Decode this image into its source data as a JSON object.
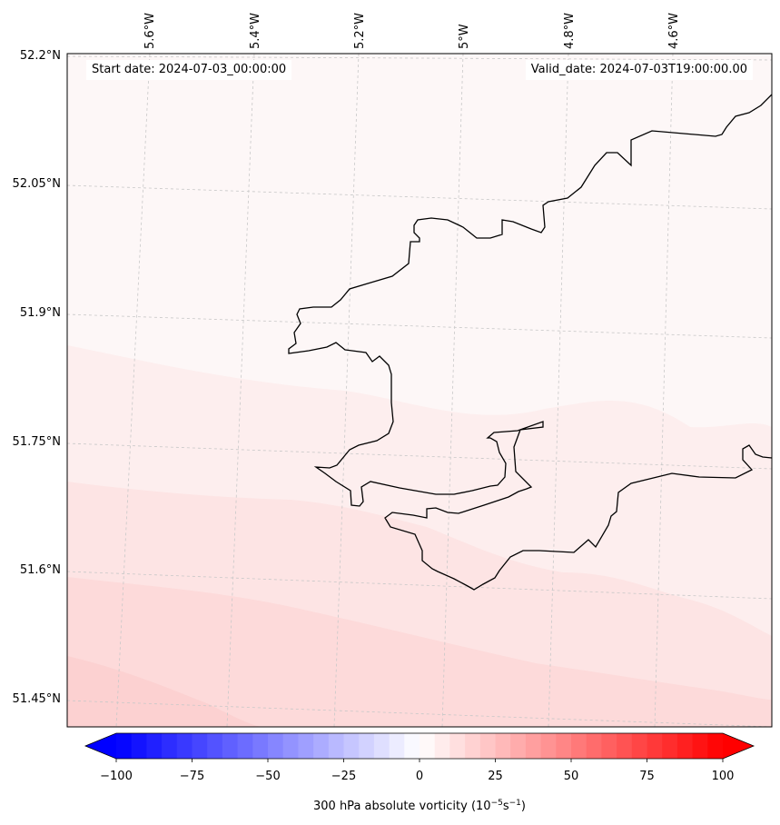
{
  "map": {
    "start_date_text": "Start date: 2024-07-03_00:00:00",
    "valid_date_text": "Valid_date: 2024-07-03T19:00:00.00",
    "longitude_labels": [
      "5.6°W",
      "5.4°W",
      "5.2°W",
      "5°W",
      "4.8°W",
      "4.6°W"
    ],
    "latitude_labels": [
      "52.2°N",
      "52.05°N",
      "51.9°N",
      "51.75°N",
      "51.6°N",
      "51.45°N"
    ],
    "coastline_color": "#000000",
    "gridline_color": "#c8c8c8"
  },
  "colorbar": {
    "label_prefix": "300 hPa absolute vorticity (10",
    "label_exp1": "−5",
    "label_mid": "s",
    "label_exp2": "−1",
    "label_suffix": ")",
    "tick_labels": [
      "−100",
      "−75",
      "−50",
      "−25",
      "0",
      "25",
      "50",
      "75",
      "100"
    ],
    "vmin": -100,
    "vmax": 100,
    "levels": 41,
    "colormap": "bwr",
    "extend": "both"
  }
}
